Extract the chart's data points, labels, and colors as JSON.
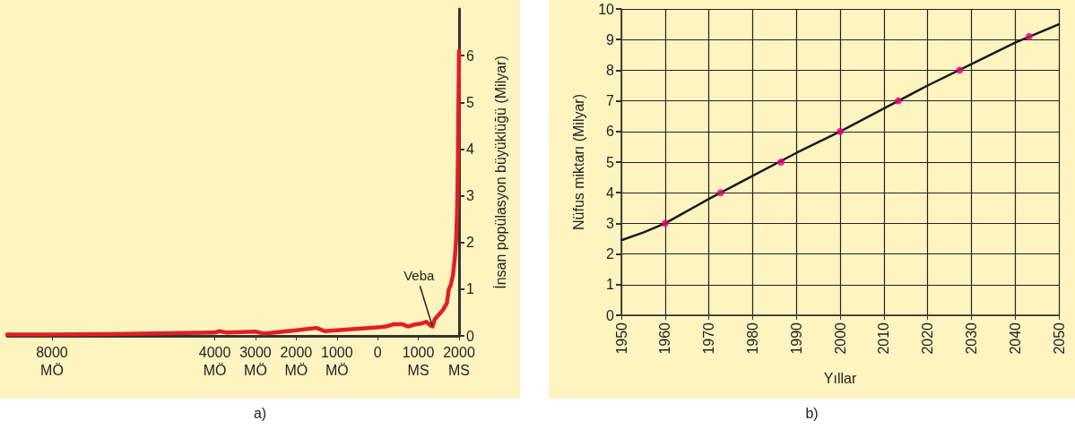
{
  "chart_data": [
    {
      "type": "line",
      "ylabel": "İnsan popülasyon büyüklüğü (Milyar)",
      "xlim": [
        -9100,
        2000
      ],
      "ylim": [
        0,
        7
      ],
      "xticks": [
        {
          "value": -8000,
          "label": "8000\nMÖ"
        },
        {
          "value": -4000,
          "label": "4000\nMÖ"
        },
        {
          "value": -3000,
          "label": "3000\nMÖ"
        },
        {
          "value": -2000,
          "label": "2000\nMÖ"
        },
        {
          "value": -1000,
          "label": "1000\nMÖ"
        },
        0,
        {
          "value": 1000,
          "label": "1000\nMS"
        },
        {
          "value": 2000,
          "label": "2000\nMS"
        }
      ],
      "yticks": [
        0,
        1,
        2,
        3,
        4,
        5,
        6
      ],
      "grid": false,
      "marker": "none",
      "series": [
        {
          "color": "#e31e24",
          "x": [
            -9100,
            -8000,
            -6500,
            -4000,
            -3900,
            -3700,
            -3000,
            -2800,
            -2000,
            -1500,
            -1300,
            -1000,
            0,
            200,
            400,
            600,
            750,
            900,
            1100,
            1200,
            1300,
            1350,
            1400,
            1500,
            1600,
            1700,
            1750,
            1800,
            1850,
            1900,
            1930,
            1950,
            1960,
            1975,
            1990,
            2000
          ],
          "values": [
            0.03,
            0.03,
            0.04,
            0.07,
            0.1,
            0.07,
            0.09,
            0.05,
            0.12,
            0.17,
            0.1,
            0.12,
            0.18,
            0.2,
            0.25,
            0.25,
            0.2,
            0.24,
            0.27,
            0.3,
            0.22,
            0.2,
            0.35,
            0.45,
            0.55,
            0.7,
            1.0,
            1.1,
            1.3,
            1.7,
            2.1,
            2.6,
            3.0,
            4.0,
            5.3,
            6.1
          ]
        }
      ],
      "annotations": [
        {
          "text": "Veba",
          "x": 1340,
          "y": 0.22
        },
        "a)"
      ]
    },
    {
      "type": "line",
      "xlabel": "Yıllar",
      "ylabel": "Nüfus miktarı (Milyar)",
      "xlim": [
        1950,
        2050
      ],
      "ylim": [
        0,
        10
      ],
      "xticks": [
        1950,
        1960,
        1970,
        1980,
        1990,
        2000,
        2010,
        2020,
        2030,
        2040,
        2050
      ],
      "yticks": [
        0,
        1,
        2,
        3,
        4,
        5,
        6,
        7,
        8,
        9,
        10
      ],
      "grid": true,
      "series": [
        {
          "color": "#1a1a1a",
          "marker": "none",
          "x": [
            1950,
            1955,
            1960,
            1970,
            1980,
            1990,
            2000,
            2010,
            2020,
            2030,
            2040,
            2050
          ],
          "values": [
            2.45,
            2.7,
            3.0,
            3.8,
            4.55,
            5.3,
            6.0,
            6.75,
            7.5,
            8.2,
            8.9,
            9.5
          ]
        },
        {
          "type": "scatter",
          "color": "#e6007e",
          "marker": "circle",
          "x": [
            1960,
            1972.7,
            1986.5,
            2000,
            2013.3,
            2027.3,
            2043.2
          ],
          "values": [
            3,
            4,
            5,
            6,
            7,
            8,
            9.1
          ]
        }
      ],
      "annotations": [
        "b)"
      ]
    }
  ]
}
